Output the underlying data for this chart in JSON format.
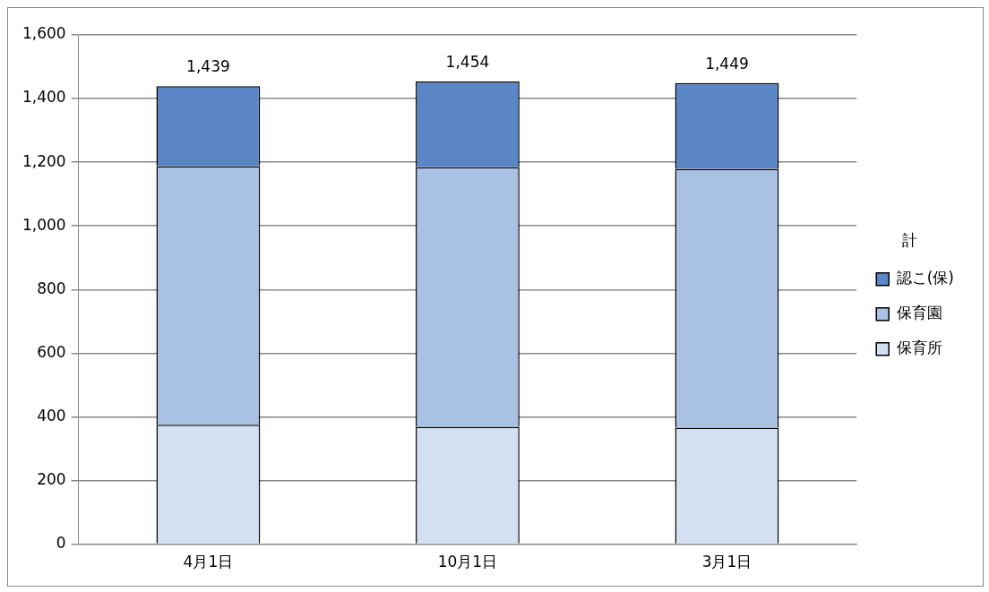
{
  "chart_data": {
    "type": "bar",
    "stacked": true,
    "categories": [
      "4月1日",
      "10月1日",
      "3月1日"
    ],
    "series": [
      {
        "name": "保育所",
        "color": "#d3e0f2",
        "values": [
          375,
          369,
          366
        ]
      },
      {
        "name": "保育園",
        "color": "#a9c1e3",
        "values": [
          813,
          816,
          813
        ]
      },
      {
        "name": "認こ(保)",
        "color": "#5b86c5",
        "values": [
          251,
          269,
          270
        ]
      }
    ],
    "totals": [
      "1,439",
      "1,454",
      "1,449"
    ],
    "legend_title": "計",
    "legend": "right",
    "ylim": [
      0,
      1600
    ],
    "yticks": [
      {
        "value": 0,
        "label": "0"
      },
      {
        "value": 200,
        "label": "200"
      },
      {
        "value": 400,
        "label": "400"
      },
      {
        "value": 600,
        "label": "600"
      },
      {
        "value": 800,
        "label": "800"
      },
      {
        "value": 1000,
        "label": "1,000"
      },
      {
        "value": 1200,
        "label": "1,200"
      },
      {
        "value": 1400,
        "label": "1,400"
      },
      {
        "value": 1600,
        "label": "1,600"
      }
    ],
    "grid": "y"
  }
}
